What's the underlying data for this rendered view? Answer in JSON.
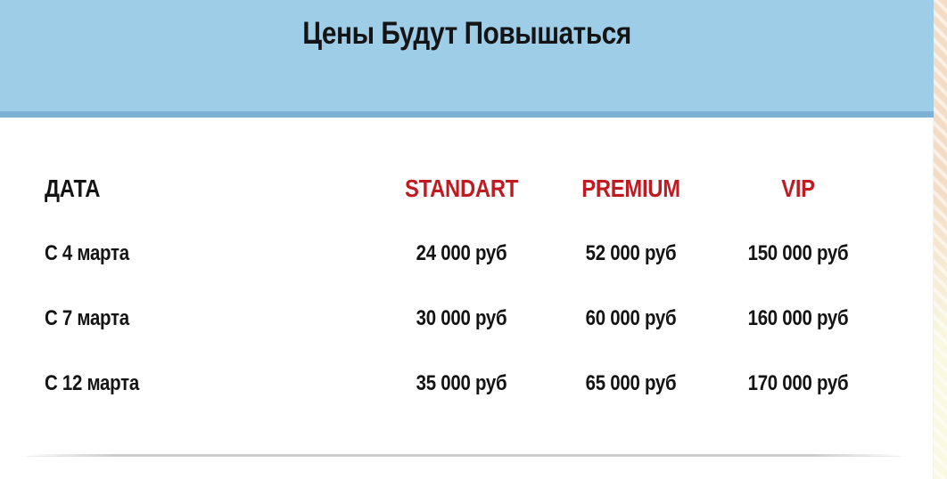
{
  "header": {
    "title": "Цены Будут Повышаться"
  },
  "table": {
    "headers": [
      "ДАТА",
      "STANDART",
      "PREMIUM",
      "VIP"
    ],
    "rows": [
      {
        "date": "С 4 марта",
        "standart": "24 000 руб",
        "premium": "52 000 руб",
        "vip": "150 000 руб"
      },
      {
        "date": "С 7 марта",
        "standart": "30 000 руб",
        "premium": "60 000 руб",
        "vip": "160 000 руб"
      },
      {
        "date": "С 12 марта",
        "standart": "35 000 руб",
        "premium": "65 000 руб",
        "vip": "170 000 руб"
      }
    ]
  },
  "colors": {
    "header_bg": "#9ecde7",
    "header_border": "#7cb1d3",
    "accent_red": "#c01a22",
    "text_dark": "#141414",
    "divider": "#cccccc",
    "texture_top": "#f4dcc4",
    "texture_bottom": "#f9f8e0"
  }
}
